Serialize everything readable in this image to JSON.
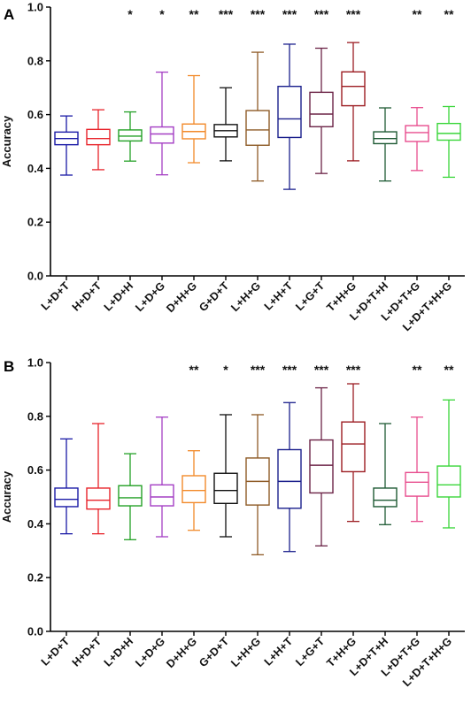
{
  "chart_data": [
    {
      "type": "boxplot",
      "panel_label": "A",
      "ylabel": "Accuracy",
      "ylim": [
        0.0,
        1.0
      ],
      "yticks": [
        "0.0",
        "0.2",
        "0.4",
        "0.6",
        "0.8",
        "1.0"
      ],
      "categories": [
        "L+D+T",
        "H+D+T",
        "L+D+H",
        "L+D+G",
        "D+H+G",
        "G+D+T",
        "L+H+G",
        "L+H+T",
        "L+G+T",
        "T+H+G",
        "L+D+T+H",
        "L+D+T+G",
        "L+D+T+H+G"
      ],
      "colors": [
        "#1a1aa6",
        "#e8232a",
        "#23a026",
        "#a43ec4",
        "#f28a2a",
        "#111111",
        "#8e5a26",
        "#1a1f8c",
        "#6b2346",
        "#9c1c22",
        "#1e5a34",
        "#e84d8e",
        "#3ad63a"
      ],
      "significance": [
        "",
        "",
        "*",
        "*",
        "**",
        "***",
        "***",
        "***",
        "***",
        "***",
        "",
        "**",
        "**"
      ],
      "boxes": [
        {
          "min": 0.375,
          "q1": 0.488,
          "median": 0.511,
          "q3": 0.535,
          "max": 0.595
        },
        {
          "min": 0.395,
          "q1": 0.488,
          "median": 0.511,
          "q3": 0.545,
          "max": 0.618
        },
        {
          "min": 0.427,
          "q1": 0.502,
          "median": 0.52,
          "q3": 0.543,
          "max": 0.61
        },
        {
          "min": 0.376,
          "q1": 0.494,
          "median": 0.528,
          "q3": 0.554,
          "max": 0.758
        },
        {
          "min": 0.421,
          "q1": 0.51,
          "median": 0.537,
          "q3": 0.565,
          "max": 0.745
        },
        {
          "min": 0.428,
          "q1": 0.517,
          "median": 0.54,
          "q3": 0.563,
          "max": 0.7
        },
        {
          "min": 0.353,
          "q1": 0.486,
          "median": 0.543,
          "q3": 0.615,
          "max": 0.832
        },
        {
          "min": 0.322,
          "q1": 0.515,
          "median": 0.584,
          "q3": 0.705,
          "max": 0.862
        },
        {
          "min": 0.381,
          "q1": 0.555,
          "median": 0.602,
          "q3": 0.683,
          "max": 0.847
        },
        {
          "min": 0.428,
          "q1": 0.633,
          "median": 0.705,
          "q3": 0.759,
          "max": 0.868
        },
        {
          "min": 0.353,
          "q1": 0.492,
          "median": 0.511,
          "q3": 0.536,
          "max": 0.625
        },
        {
          "min": 0.392,
          "q1": 0.5,
          "median": 0.533,
          "q3": 0.559,
          "max": 0.626
        },
        {
          "min": 0.367,
          "q1": 0.505,
          "median": 0.53,
          "q3": 0.567,
          "max": 0.63
        }
      ]
    },
    {
      "type": "boxplot",
      "panel_label": "B",
      "ylabel": "Accuracy",
      "ylim": [
        0.0,
        1.0
      ],
      "yticks": [
        "0.0",
        "0.2",
        "0.4",
        "0.6",
        "0.8",
        "1.0"
      ],
      "categories": [
        "L+D+T",
        "H+D+T",
        "L+D+H",
        "L+D+G",
        "D+H+G",
        "G+D+T",
        "L+H+G",
        "L+H+T",
        "L+G+T",
        "T+H+G",
        "L+D+T+H",
        "L+D+T+G",
        "L+D+T+H+G"
      ],
      "colors": [
        "#1a1aa6",
        "#e8232a",
        "#23a026",
        "#a43ec4",
        "#f28a2a",
        "#111111",
        "#8e5a26",
        "#1a1f8c",
        "#6b2346",
        "#9c1c22",
        "#1e5a34",
        "#e84d8e",
        "#3ad63a"
      ],
      "significance": [
        "",
        "",
        "",
        "",
        "**",
        "*",
        "***",
        "***",
        "***",
        "***",
        "",
        "**",
        "**"
      ],
      "boxes": [
        {
          "min": 0.363,
          "q1": 0.464,
          "median": 0.491,
          "q3": 0.533,
          "max": 0.716
        },
        {
          "min": 0.363,
          "q1": 0.455,
          "median": 0.488,
          "q3": 0.533,
          "max": 0.773
        },
        {
          "min": 0.341,
          "q1": 0.467,
          "median": 0.497,
          "q3": 0.542,
          "max": 0.661
        },
        {
          "min": 0.352,
          "q1": 0.467,
          "median": 0.5,
          "q3": 0.545,
          "max": 0.797
        },
        {
          "min": 0.376,
          "q1": 0.479,
          "median": 0.524,
          "q3": 0.579,
          "max": 0.672
        },
        {
          "min": 0.352,
          "q1": 0.476,
          "median": 0.524,
          "q3": 0.588,
          "max": 0.806
        },
        {
          "min": 0.285,
          "q1": 0.47,
          "median": 0.558,
          "q3": 0.645,
          "max": 0.806
        },
        {
          "min": 0.297,
          "q1": 0.458,
          "median": 0.558,
          "q3": 0.676,
          "max": 0.851
        },
        {
          "min": 0.318,
          "q1": 0.515,
          "median": 0.618,
          "q3": 0.712,
          "max": 0.906
        },
        {
          "min": 0.409,
          "q1": 0.594,
          "median": 0.697,
          "q3": 0.779,
          "max": 0.921
        },
        {
          "min": 0.397,
          "q1": 0.464,
          "median": 0.488,
          "q3": 0.533,
          "max": 0.773
        },
        {
          "min": 0.409,
          "q1": 0.503,
          "median": 0.555,
          "q3": 0.591,
          "max": 0.797
        },
        {
          "min": 0.385,
          "q1": 0.5,
          "median": 0.545,
          "q3": 0.615,
          "max": 0.861
        }
      ]
    }
  ]
}
